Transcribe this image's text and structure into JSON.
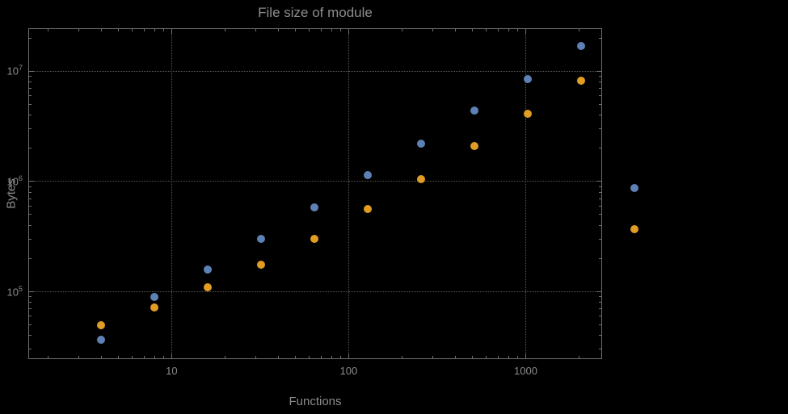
{
  "figure": {
    "title": "File size of module",
    "x_axis_label": "Functions",
    "y_axis_label": "Bytes"
  },
  "style": {
    "background": "#000000",
    "text_color": "#8c8c8c",
    "frame_color": "#6f6f6f",
    "grid_color": "#5a5a5a"
  },
  "chart_data": {
    "type": "scatter",
    "title": "File size of module",
    "xlabel": "Functions",
    "ylabel": "Bytes",
    "x_scale": "log",
    "y_scale": "log",
    "grid": "dotted lines at decade ticks, both axes",
    "legend": "none",
    "xlim": [
      1.55,
      2700
    ],
    "ylim": [
      24500,
      24500000
    ],
    "x_major_ticks": [
      10,
      100,
      1000
    ],
    "y_major_ticks": [
      100000,
      1000000,
      10000000
    ],
    "x": [
      4,
      8,
      16,
      32,
      64,
      128,
      256,
      512,
      1024,
      2048,
      4096
    ],
    "series": [
      {
        "name": "series-blue",
        "color": "#5e81b5",
        "values": [
          37000,
          90000,
          160000,
          300000,
          580000,
          1150000,
          2200000,
          4400000,
          8500000,
          17000000,
          870000
        ]
      },
      {
        "name": "series-orange",
        "color": "#e19c24",
        "values": [
          50000,
          72000,
          110000,
          175000,
          300000,
          560000,
          1050000,
          2100000,
          4100000,
          8200000,
          370000
        ]
      }
    ],
    "note": "Last pair of points (x=4096) is drawn outside the right edge of the plot frame"
  }
}
